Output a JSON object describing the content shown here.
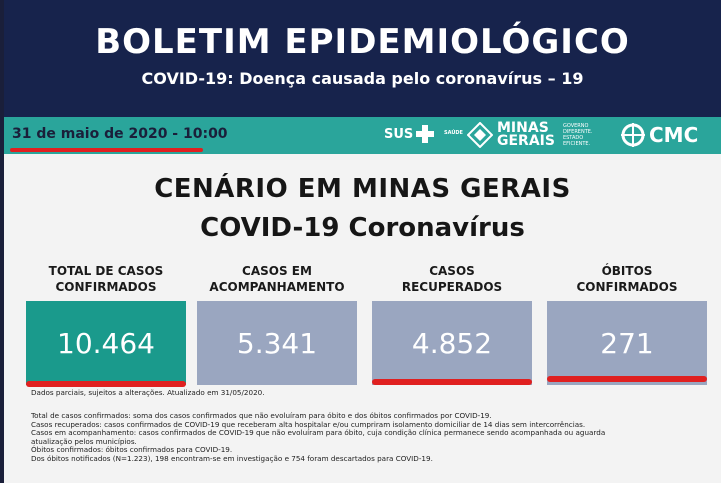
{
  "header": {
    "title": "BOLETIM EPIDEMIOLÓGICO",
    "subtitle": "COVID-19: Doença causada pelo coronavírus – 19"
  },
  "band": {
    "date": "31 de maio de 2020 - 10:00",
    "logos": {
      "sus": "SUS",
      "saude": "SAÚDE",
      "mg_line1": "MINAS",
      "mg_line2": "GERAIS",
      "mg_tag1": "GOVERNO",
      "mg_tag2": "DIFERENTE.",
      "mg_tag3": "ESTADO",
      "mg_tag4": "EFICIENTE.",
      "cmc": "CMC"
    }
  },
  "main": {
    "title": "CENÁRIO EM MINAS GERAIS",
    "subtitle": "COVID-19 Coronavírus",
    "cards": [
      {
        "label1": "TOTAL DE CASOS",
        "label2": "CONFIRMADOS",
        "value": "10.464"
      },
      {
        "label1": "CASOS EM",
        "label2": "ACOMPANHAMENTO",
        "value": "5.341"
      },
      {
        "label1": "CASOS",
        "label2": "RECUPERADOS",
        "value": "4.852"
      },
      {
        "label1": "ÓBITOS",
        "label2": "CONFIRMADOS",
        "value": "271"
      }
    ],
    "partial_note": "Dados parciais, sujeitos a alterações. Atualizado em 31/05/2020.",
    "definitions": [
      "Total de  casos confirmados: soma dos casos confirmados que não evoluíram para óbito e dos óbitos confirmados por COVID-19.",
      "Casos recuperados: casos confirmados de COVID-19 que receberam alta hospitalar e/ou cumpriram isolamento domiciliar de 14 dias sem intercorrências.",
      "Casos em acompanhamento: casos confirmados de COVID-19 que não evoluíram para óbito, cuja condição clínica permanece sendo acompanhada ou aguarda",
      "atualização pelos municípios.",
      "Óbitos confirmados: óbitos confirmados para COVID-19.",
      "Dos óbitos notificados (N=1.223), 198 encontram-se em investigação e 754 foram descartados para COVID-19."
    ]
  },
  "colors": {
    "header_bg": "#17234c",
    "band_bg": "#2aa59b",
    "card_confirmed": "#1a9a8c",
    "card_other": "#9aa6c0",
    "highlight_red": "#e02020"
  }
}
